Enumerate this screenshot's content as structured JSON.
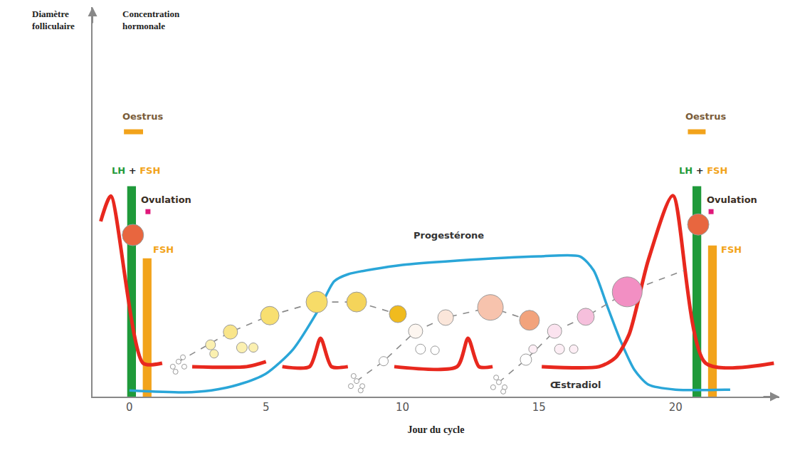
{
  "chart_data": {
    "type": "line",
    "xlabel": "Jour du cycle",
    "ylabel": [
      "Diamètre folliculaire",
      "Concentration hormonale"
    ],
    "xlim": [
      -1.35,
      23.8
    ],
    "xticks": [
      0,
      5,
      10,
      15,
      20
    ],
    "ylim": [
      0,
      100
    ],
    "yticks": [],
    "tick_labels": "x",
    "grid": false,
    "series": [
      {
        "type": "line",
        "line_style": "solid",
        "color": "#2aa6d8",
        "x": [
          0,
          2,
          3,
          4,
          5,
          6,
          7,
          7.5,
          8,
          10,
          12,
          15,
          16.5,
          17,
          17.5,
          18,
          18.5,
          19,
          20,
          22
        ],
        "values": [
          1.6,
          1.1,
          1.6,
          3.1,
          5.9,
          12.2,
          23.2,
          29.6,
          31.4,
          33.8,
          34.9,
          36.0,
          36.0,
          32.4,
          23.2,
          14.1,
          6.8,
          3.1,
          1.8,
          1.8
        ]
      },
      {
        "type": "line",
        "line_style": "solid",
        "color": "#e8281e",
        "x": [
          -1.05,
          -0.68,
          0.5,
          1.2,
          1.7,
          2.3,
          4.3,
          5.0,
          5.3,
          5.6,
          6.6,
          7.0,
          7.4,
          8.0,
          8.8,
          9.7,
          12.0,
          12.4,
          12.8,
          13.3,
          14.2,
          15.1,
          17.2,
          17.8,
          18.3,
          19.0,
          19.9,
          21.1,
          23.6
        ],
        "values": [
          45,
          51.5,
          8.6,
          8.6,
          null,
          7.7,
          7.7,
          9,
          null,
          7.7,
          7.7,
          15,
          7.7,
          7.7,
          null,
          7.7,
          7.7,
          15,
          7.7,
          7.7,
          null,
          7.7,
          7.7,
          10,
          16,
          35,
          51.6,
          8.6,
          8.6
        ]
      },
      {
        "type": "bar",
        "color": "#1f9a3a",
        "x": [
          0.08,
          20.78
        ],
        "values": [
          54,
          54
        ]
      },
      {
        "type": "bar",
        "color": "#f2a31b",
        "x": [
          0.65,
          21.35
        ],
        "values": [
          35.5,
          38.8
        ]
      },
      {
        "type": "period",
        "color": "#f2a31b",
        "x": [
          [
            -0.2,
            0.5
          ],
          [
            20.45,
            21.1
          ]
        ],
        "values": [
          68,
          68
        ]
      },
      {
        "type": "line",
        "line_style": "dash",
        "color": "#8a8a8a",
        "x": [
          1.8,
          3.7,
          5.14,
          6.86,
          8.32,
          9.83
        ],
        "values": [
          9.0,
          16.6,
          20.8,
          24.3,
          24.3,
          21.2
        ]
      },
      {
        "type": "line",
        "line_style": "dash",
        "color": "#8a8a8a",
        "x": [
          8.32,
          9.31,
          10.48,
          11.58,
          13.22,
          14.65
        ],
        "values": [
          4.0,
          9.1,
          16.8,
          20.3,
          22.9,
          19.6
        ]
      },
      {
        "type": "line",
        "line_style": "dash",
        "color": "#8a8a8a",
        "x": [
          13.53,
          14.52,
          15.57,
          16.71,
          18.23,
          20.31
        ],
        "values": [
          3.7,
          9.5,
          16.8,
          20.5,
          26.9,
          32.4
        ]
      },
      {
        "type": "follicles",
        "marker": "circle",
        "x": [
          1.59,
          1.8,
          2.01,
          1.69,
          1.96,
          2.97,
          3.1,
          3.7,
          4.12,
          4.54,
          5.14,
          6.86,
          8.32,
          9.83
        ],
        "values": [
          7.7,
          9.0,
          7.7,
          6.4,
          10.1,
          13.3,
          11.0,
          16.6,
          12.6,
          12.6,
          20.8,
          24.3,
          24.3,
          21.2
        ],
        "sizes": [
          7,
          7,
          7,
          7,
          7,
          14,
          12,
          20,
          15,
          13,
          26,
          30,
          28,
          24
        ],
        "colors": [
          "#ffffff",
          "#ffffff",
          "#ffffff",
          "#ffffff",
          "#ffffff",
          "#fbf0b0",
          "#fbf0b0",
          "#f9e58a",
          "#fbf0b0",
          "#fbf0b0",
          "#f8df70",
          "#f7dc68",
          "#f5d45a",
          "#f0bb1e"
        ]
      },
      {
        "type": "follicles",
        "marker": "circle",
        "x": [
          8.11,
          8.32,
          8.53,
          8.21,
          8.47,
          9.31,
          10.48,
          10.66,
          11.19,
          11.58,
          13.22,
          14.65
        ],
        "values": [
          2.7,
          4.0,
          2.7,
          5.3,
          1.6,
          9.1,
          16.8,
          12.2,
          11.9,
          20.3,
          22.9,
          19.6
        ],
        "sizes": [
          7,
          7,
          7,
          7,
          7,
          13,
          20,
          14,
          12,
          22,
          36,
          28
        ],
        "colors": [
          "#ffffff",
          "#ffffff",
          "#ffffff",
          "#ffffff",
          "#ffffff",
          "#ffffff",
          "#fdf6f0",
          "#ffffff",
          "#ffffff",
          "#fbe6da",
          "#f7c3ad",
          "#f2a37c"
        ]
      },
      {
        "type": "follicles",
        "marker": "circle",
        "x": [
          13.32,
          13.53,
          13.74,
          13.43,
          13.69,
          14.52,
          14.78,
          15.57,
          15.75,
          16.27,
          16.71,
          18.23
        ],
        "values": [
          2.4,
          3.7,
          2.4,
          4.9,
          1.3,
          9.5,
          12.2,
          16.8,
          12.2,
          12.2,
          20.5,
          26.9
        ],
        "sizes": [
          7,
          7,
          7,
          7,
          7,
          16,
          12,
          20,
          14,
          12,
          24,
          42
        ],
        "colors": [
          "#ffffff",
          "#ffffff",
          "#ffffff",
          "#ffffff",
          "#ffffff",
          "#ffffff",
          "#fdeef5",
          "#fbe3ef",
          "#fdeef5",
          "#fdeef5",
          "#f6bfdc",
          "#f28fc3"
        ]
      },
      {
        "type": "follicles",
        "marker": "circle",
        "x": [
          0.13,
          20.83
        ],
        "values": [
          41.5,
          44.2
        ],
        "sizes": [
          30,
          30
        ],
        "colors": [
          "#e8663f",
          "#e8663f"
        ]
      },
      {
        "type": "scatter",
        "marker": "square",
        "color": "#e0187a",
        "x": [
          0.68,
          21.3
        ],
        "values": [
          47.5,
          47.5
        ]
      }
    ],
    "annotations": [
      {
        "text": "Oestrus",
        "x": 0.5,
        "y": 72,
        "color": "#7a5c3a",
        "anchor": "center"
      },
      {
        "text": "Oestrus",
        "x": 21.1,
        "y": 72,
        "color": "#7a5c3a",
        "anchor": "center"
      },
      {
        "parts": [
          {
            "text": "LH",
            "color": "#1f9a3a"
          },
          {
            "text": "+",
            "color": "#222222"
          },
          {
            "text": "FSH",
            "color": "#f2a31b"
          }
        ],
        "x": 0.23,
        "y": 58,
        "anchor": "center"
      },
      {
        "parts": [
          {
            "text": "LH",
            "color": "#1f9a3a"
          },
          {
            "text": "+",
            "color": "#222222"
          },
          {
            "text": "FSH",
            "color": "#f2a31b"
          }
        ],
        "x": 21.0,
        "y": 58,
        "anchor": "center"
      },
      {
        "text": "Ovulation",
        "x": 0.37,
        "y": 50.6,
        "color": "#3a2e24",
        "anchor": "left"
      },
      {
        "text": "Ovulation",
        "x": 21.1,
        "y": 50.6,
        "color": "#3a2e24",
        "anchor": "left"
      },
      {
        "text": "FSH",
        "x": 0.81,
        "y": 37.8,
        "color": "#f2a31b",
        "anchor": "left"
      },
      {
        "text": "FSH",
        "x": 21.6,
        "y": 37.8,
        "color": "#f2a31b",
        "anchor": "left"
      },
      {
        "text": "Progestérone",
        "x": 11.7,
        "y": 41.5,
        "color": "#333333",
        "anchor": "center"
      },
      {
        "text": "Œstradiol",
        "x": 15.36,
        "y": 3.1,
        "color": "#333333",
        "anchor": "left"
      }
    ]
  }
}
